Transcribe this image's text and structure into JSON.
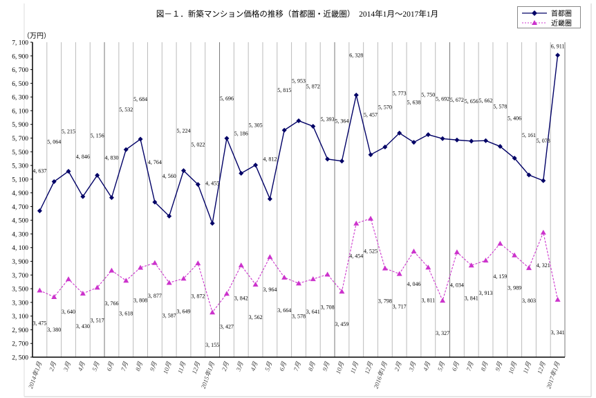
{
  "chart": {
    "title": "図－１．新築マンション価格の推移（首都圏・近畿圏）　2014年1月～2017年1月",
    "unit_label": "（万円）",
    "legend": [
      {
        "name": "首都圏",
        "color": "#000066",
        "marker": "diamond",
        "line": "solid"
      },
      {
        "name": "近畿圏",
        "color": "#cc33cc",
        "marker": "triangle",
        "line": "dashed"
      }
    ]
  },
  "chart_data": {
    "type": "line",
    "title": "図－１．新築マンション価格の推移（首都圏・近畿圏）　2014年1月～2017年1月",
    "xlabel": "",
    "ylabel": "（万円）",
    "ylim": [
      2500,
      7100
    ],
    "yticks": [
      2500,
      2700,
      2900,
      3100,
      3300,
      3500,
      3700,
      3900,
      4100,
      4300,
      4500,
      4700,
      4900,
      5100,
      5300,
      5500,
      5700,
      5900,
      6100,
      6300,
      6500,
      6700,
      6900,
      7100
    ],
    "ytick_labels": [
      "2, 500",
      "2, 700",
      "2, 900",
      "3, 100",
      "3, 300",
      "3, 500",
      "3, 700",
      "3, 900",
      "4, 100",
      "4, 300",
      "4, 500",
      "4, 700",
      "4, 900",
      "5, 100",
      "5, 300",
      "5, 500",
      "5, 700",
      "5, 900",
      "6, 100",
      "6, 300",
      "6, 500",
      "6, 700",
      "6, 900",
      "7, 100"
    ],
    "grid": "vertical",
    "legend_position": "top-right",
    "categories": [
      "2014年1月",
      "2月",
      "3月",
      "4月",
      "5月",
      "6月",
      "7月",
      "8月",
      "9月",
      "10月",
      "11月",
      "12月",
      "2015年1月",
      "2月",
      "3月",
      "4月",
      "5月",
      "6月",
      "7月",
      "8月",
      "9月",
      "10月",
      "11月",
      "12月",
      "2016年1月",
      "2月",
      "3月",
      "4月",
      "5月",
      "6月",
      "7月",
      "8月",
      "9月",
      "10月",
      "11月",
      "12月",
      "2017年1月"
    ],
    "series": [
      {
        "name": "首都圏",
        "values": [
          4637,
          5064,
          5215,
          4846,
          5156,
          4830,
          5532,
          5684,
          4764,
          4560,
          5224,
          5022,
          4455,
          5696,
          5186,
          5305,
          4812,
          5815,
          5953,
          5872,
          5393,
          5364,
          6328,
          5457,
          5570,
          5773,
          5638,
          5750,
          5692,
          5672,
          5656,
          5662,
          5578,
          5406,
          5161,
          5078,
          6911
        ]
      },
      {
        "name": "近畿圏",
        "values": [
          3475,
          3380,
          3640,
          3430,
          3517,
          3766,
          3618,
          3808,
          3877,
          3587,
          3649,
          3872,
          3155,
          3427,
          3842,
          3562,
          3964,
          3664,
          3578,
          3641,
          3708,
          3459,
          4454,
          4525,
          3798,
          3717,
          4046,
          3811,
          3327,
          4034,
          3841,
          3913,
          4159,
          3989,
          3803,
          4321,
          3341
        ]
      }
    ],
    "labels": {
      "首都圏": [
        "4, 637",
        "5, 064",
        "5, 215",
        "4, 846",
        "5, 156",
        "4, 830",
        "5, 532",
        "5, 684",
        "4, 764",
        "4, 560",
        "5, 224",
        "5, 022",
        "4, 455",
        "5, 696",
        "5, 186",
        "5, 305",
        "4, 812",
        "5, 815",
        "5, 953",
        "5, 872",
        "5, 393",
        "5, 364",
        "6, 328",
        "5, 457",
        "5, 570",
        "5, 773",
        "5, 638",
        "5, 750",
        "5, 692",
        "5, 672",
        "5, 656",
        "5, 662",
        "5, 578",
        "5, 406",
        "5, 161",
        "5, 078",
        "6, 911"
      ],
      "近畿圏": [
        "3, 475",
        "3, 380",
        "3, 640",
        "3, 430",
        "3, 517",
        "3, 766",
        "3, 618",
        "3, 808",
        "3, 877",
        "3, 587",
        "3, 649",
        "3, 872",
        "3, 155",
        "3, 427",
        "3, 842",
        "3, 562",
        "3, 964",
        "3, 664",
        "3, 578",
        "3, 641",
        "3, 708",
        "3, 459",
        "4, 454",
        "4, 525",
        "3, 798",
        "3, 717",
        "4, 046",
        "3, 811",
        "3, 327",
        "4, 034",
        "3, 841",
        "3, 913",
        "4, 159",
        "3, 989",
        "3, 803",
        "4, 321",
        "3, 341"
      ]
    }
  }
}
